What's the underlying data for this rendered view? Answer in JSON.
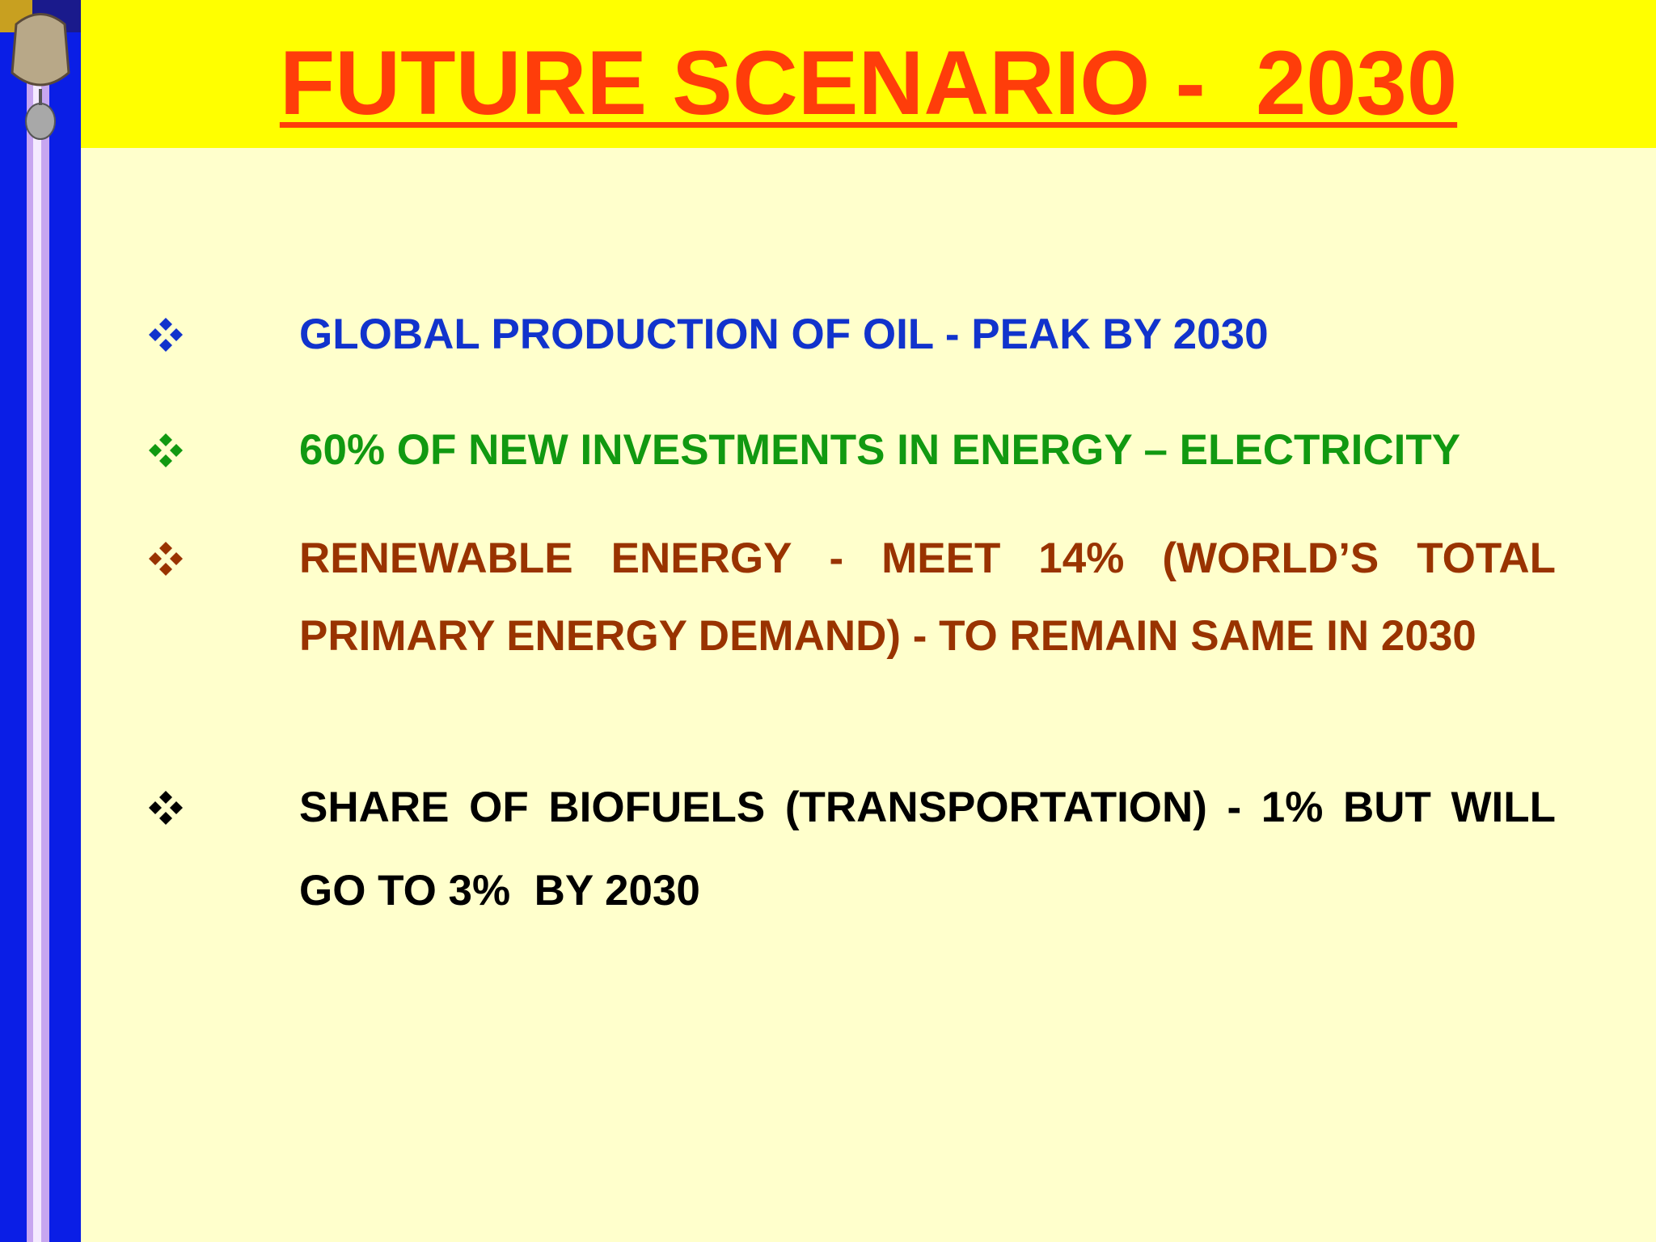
{
  "header": {
    "title": "FUTURE SCENARIO -  2030"
  },
  "bullets": [
    {
      "text": "GLOBAL PRODUCTION OF OIL - PEAK BY 2030",
      "color": "#1133cc"
    },
    {
      "text": "60% OF NEW INVESTMENTS IN ENERGY – ELECTRICITY",
      "color": "#119911"
    },
    {
      "text": "RENEWABLE ENERGY - MEET 14% (WORLD’S TOTAL PRIMARY ENERGY DEMAND) - TO REMAIN SAME IN 2030",
      "color": "#993300"
    },
    {
      "text": "SHARE OF BIOFUELS (TRANSPORTATION) - 1% BUT WILL GO TO 3%  BY 2030",
      "color": "#000000"
    }
  ]
}
